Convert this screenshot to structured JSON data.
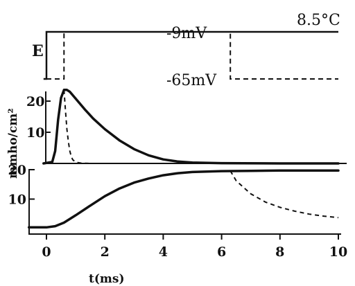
{
  "chart_data": [
    {
      "type": "line",
      "panel": "voltage-protocol",
      "ylabel": "E",
      "annotations": [
        "8.5°C",
        "-9mV",
        "-65mV"
      ],
      "series": [
        {
          "style": "solid",
          "x": [
            -0.1,
            0.0,
            0.0,
            10.0
          ],
          "y": [
            -65,
            -65,
            -9,
            -9
          ]
        },
        {
          "style": "dashed",
          "x": [
            0.0,
            0.6,
            0.6,
            6.3,
            6.3,
            10.0
          ],
          "y": [
            -65,
            -65,
            -9,
            -9,
            -65,
            -65
          ]
        }
      ]
    },
    {
      "type": "line",
      "panel": "sodium-conductance",
      "ylabel": "mmho/cm²",
      "ylim": [
        0,
        25
      ],
      "y_ticks": [
        "20",
        "10"
      ],
      "series": [
        {
          "style": "solid",
          "x": [
            -0.1,
            0.2,
            0.3,
            0.4,
            0.5,
            0.6,
            0.7,
            0.8,
            1.0,
            1.3,
            1.6,
            2.0,
            2.5,
            3.0,
            3.5,
            4.0,
            4.5,
            5.0,
            6.0,
            8.0,
            10.0
          ],
          "y": [
            0,
            0.5,
            4,
            14,
            21,
            23.6,
            23.6,
            23,
            20.8,
            17.5,
            14.4,
            11,
            7.4,
            4.6,
            2.6,
            1.3,
            0.6,
            0.3,
            0.1,
            0,
            0
          ]
        },
        {
          "style": "dashed",
          "x": [
            0.6,
            0.65,
            0.7,
            0.75,
            0.8,
            0.85,
            0.9,
            1.0,
            1.2,
            1.5
          ],
          "y": [
            23.6,
            17,
            11,
            7,
            4,
            2.2,
            1.2,
            0.4,
            0.1,
            0
          ]
        }
      ]
    },
    {
      "type": "line",
      "panel": "potassium-conductance",
      "ylim": [
        0,
        25
      ],
      "y_ticks": [
        "20",
        "10"
      ],
      "xlim": [
        -0.6,
        10
      ],
      "x_ticks": [
        "0",
        "2",
        "4",
        "6",
        "8",
        "10"
      ],
      "xlabel": "t(ms)",
      "series": [
        {
          "style": "solid",
          "x": [
            -0.6,
            0.0,
            0.3,
            0.6,
            1.0,
            1.5,
            2.0,
            2.5,
            3.0,
            3.5,
            4.0,
            4.5,
            5.0,
            6.0,
            7.0,
            8.0,
            9.0,
            10.0
          ],
          "y": [
            0.4,
            0.4,
            0.8,
            2,
            4.5,
            7.8,
            11,
            13.6,
            15.6,
            17,
            18.1,
            18.8,
            19.2,
            19.5,
            19.6,
            19.7,
            19.7,
            19.7
          ]
        },
        {
          "style": "dashed",
          "x": [
            6.3,
            6.5,
            7.0,
            7.5,
            8.0,
            8.5,
            9.0,
            9.5,
            10.0
          ],
          "y": [
            19.6,
            16.2,
            11.8,
            9,
            7.2,
            5.9,
            4.9,
            4.2,
            3.7
          ]
        }
      ]
    }
  ]
}
